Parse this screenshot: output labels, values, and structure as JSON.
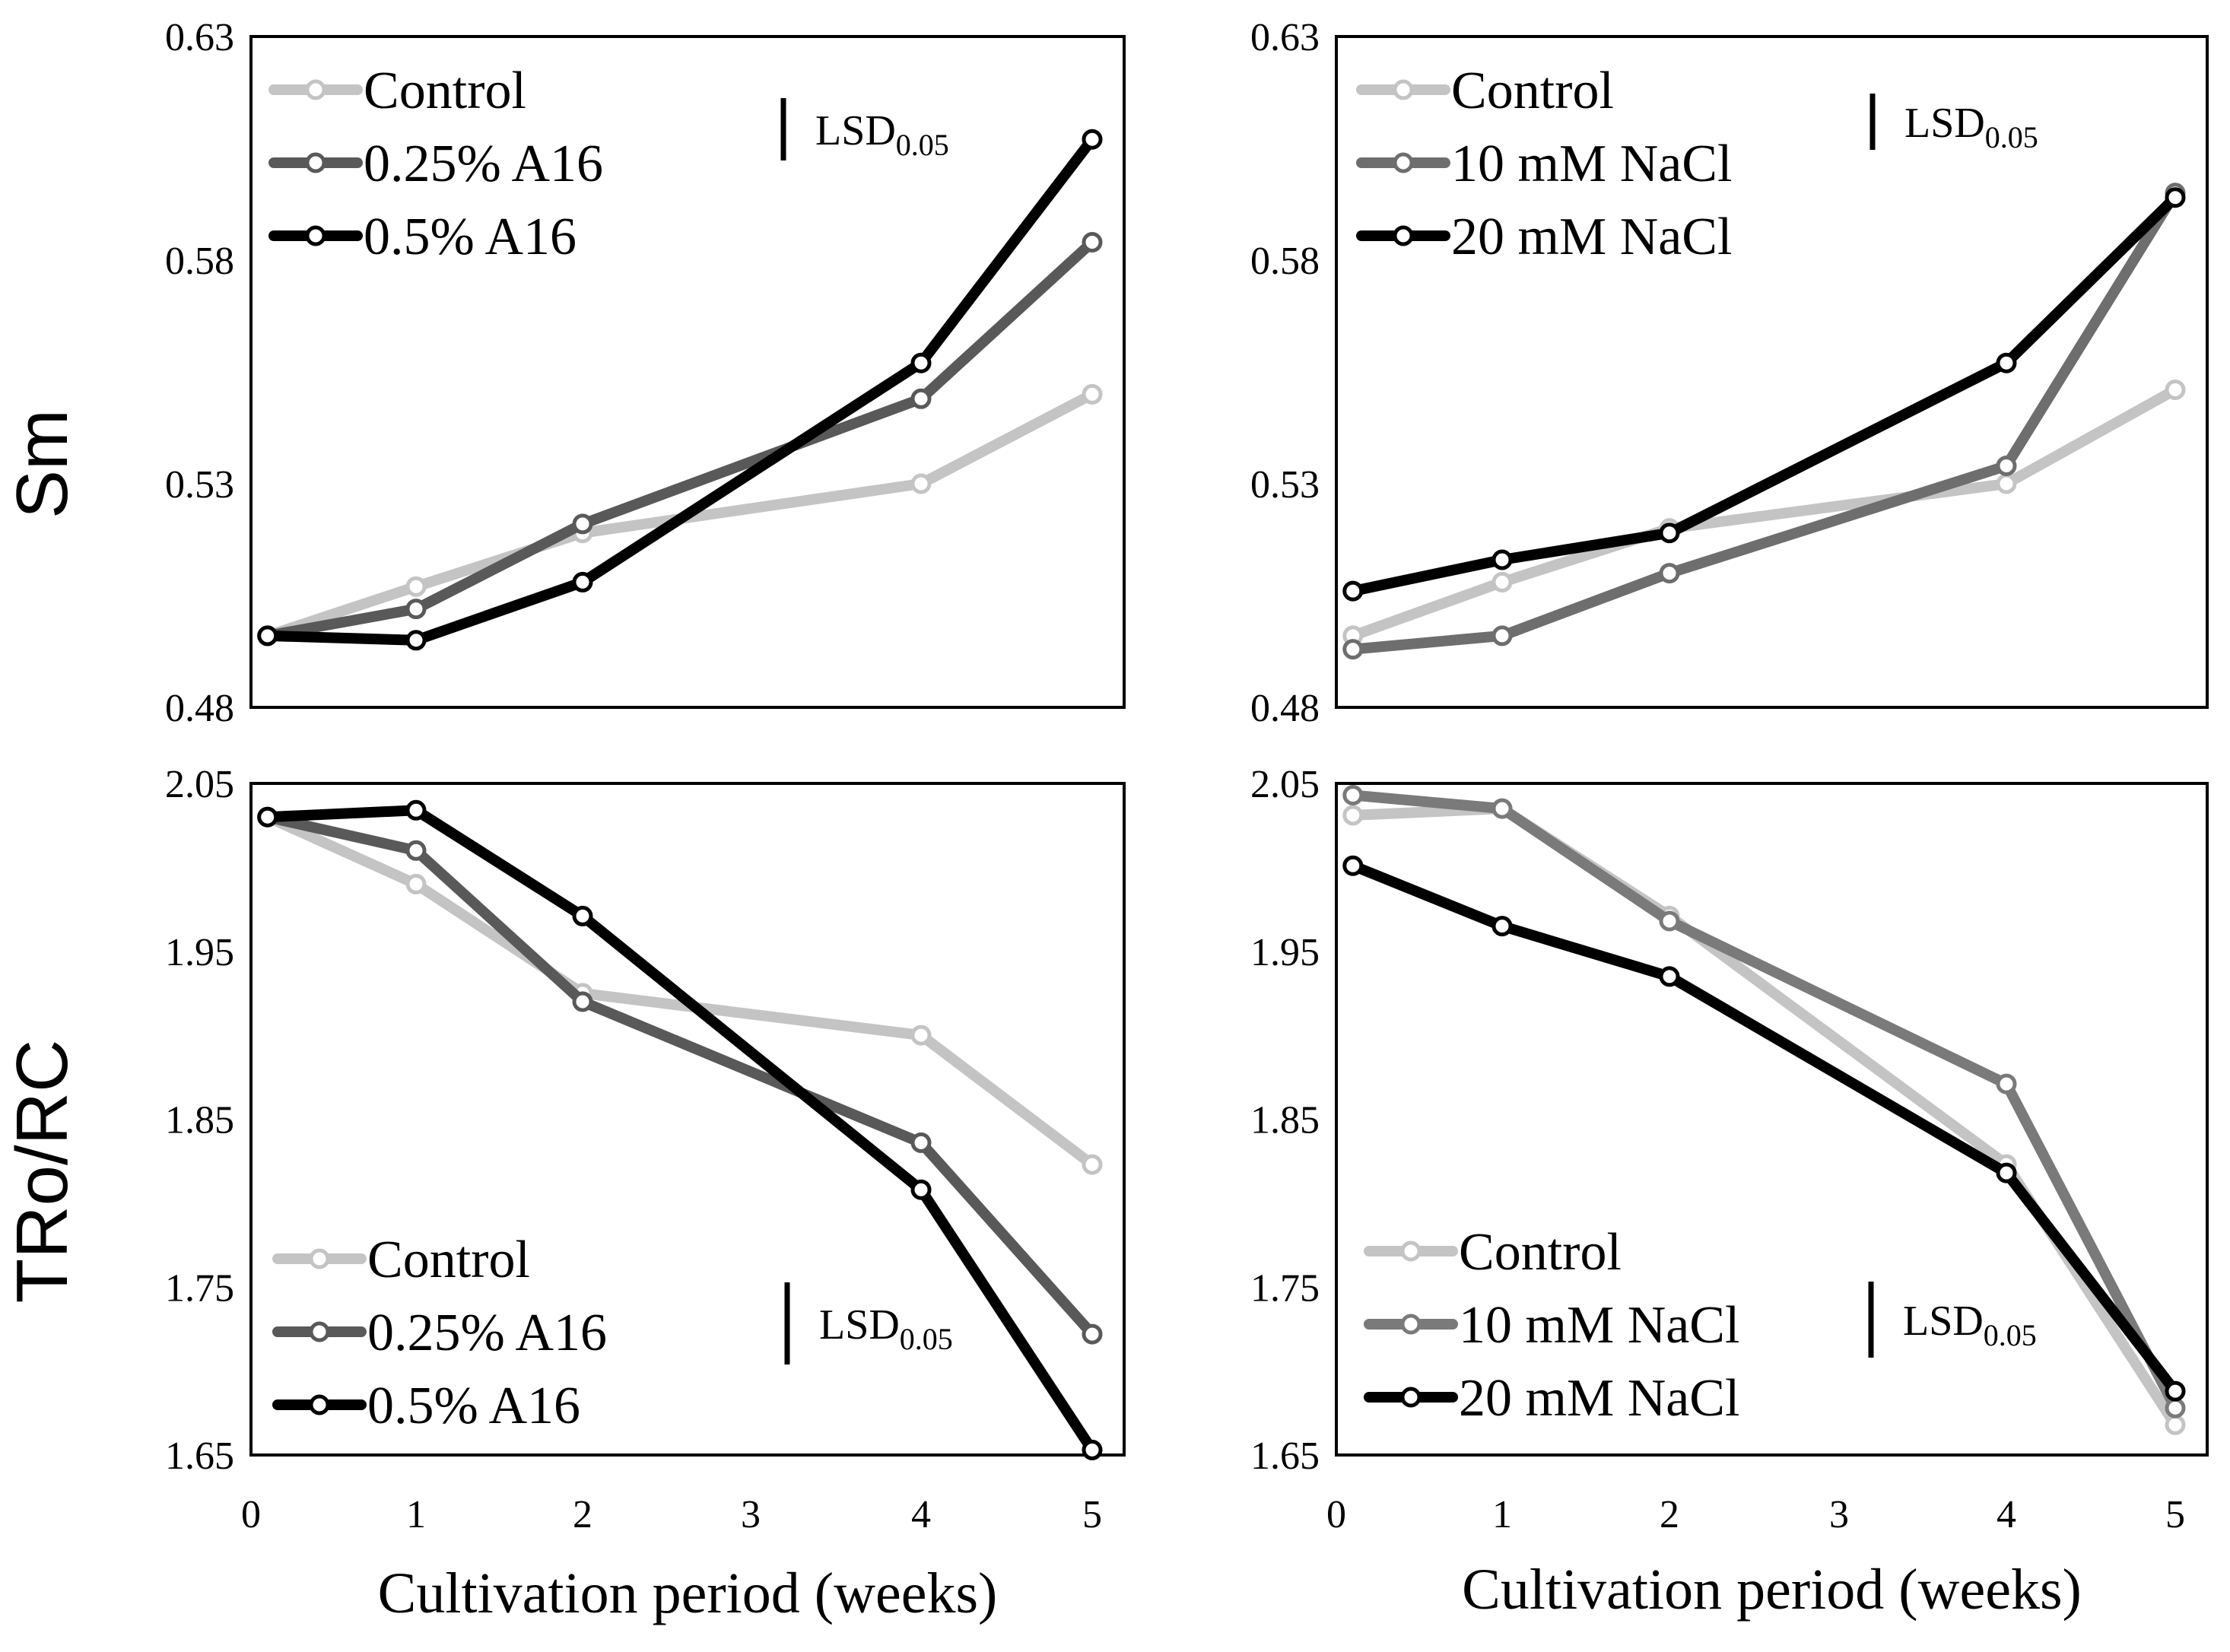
{
  "chart_data": [
    {
      "type": "line",
      "ylabel": "Sm",
      "xlabel": "",
      "x": [
        0.1,
        1,
        2,
        4,
        5
      ],
      "xticks": [
        "0",
        "1",
        "2",
        "3",
        "4",
        "5"
      ],
      "ylim": [
        0.48,
        0.63
      ],
      "yticks": [
        "0.63",
        "0.58",
        "0.53",
        "0.48"
      ],
      "lsd_label": "LSD",
      "lsd_sub": "0.05",
      "legend_position": "top-left",
      "series": [
        {
          "name": "Control",
          "color": "#c4c4c4",
          "values": [
            0.496,
            0.507,
            0.519,
            0.53,
            0.55
          ]
        },
        {
          "name": "0.25% A16",
          "color": "#595959",
          "values": [
            0.496,
            0.502,
            0.521,
            0.549,
            0.584
          ]
        },
        {
          "name": "0.5% A16",
          "color": "#000000",
          "values": [
            0.496,
            0.495,
            0.508,
            0.557,
            0.607
          ]
        }
      ]
    },
    {
      "type": "line",
      "ylabel": "",
      "xlabel": "",
      "x": [
        0.1,
        1,
        2,
        4,
        5
      ],
      "xticks": [
        "0",
        "1",
        "2",
        "3",
        "4",
        "5"
      ],
      "ylim": [
        0.48,
        0.63
      ],
      "yticks": [
        "0.63",
        "0.58",
        "0.53",
        "0.48"
      ],
      "lsd_label": "LSD",
      "lsd_sub": "0.05",
      "legend_position": "top-left",
      "series": [
        {
          "name": "Control",
          "color": "#c4c4c4",
          "values": [
            0.496,
            0.508,
            0.52,
            0.53,
            0.551
          ]
        },
        {
          "name": "10 mM NaCl",
          "color": "#6e6e6e",
          "values": [
            0.493,
            0.496,
            0.51,
            0.534,
            0.595
          ]
        },
        {
          "name": "20 mM NaCl",
          "color": "#000000",
          "values": [
            0.506,
            0.513,
            0.519,
            0.557,
            0.594
          ]
        }
      ]
    },
    {
      "type": "line",
      "ylabel": "TRo/RC",
      "xlabel": "Cultivation period (weeks)",
      "x": [
        0.1,
        1,
        2,
        4,
        5
      ],
      "xticks": [
        "0",
        "1",
        "2",
        "3",
        "4",
        "5"
      ],
      "ylim": [
        1.65,
        2.05
      ],
      "yticks": [
        "2.05",
        "1.95",
        "1.85",
        "1.75",
        "1.65"
      ],
      "lsd_label": "LSD",
      "lsd_sub": "0.05",
      "legend_position": "bottom-left",
      "series": [
        {
          "name": "Control",
          "color": "#c4c4c4",
          "values": [
            2.03,
            1.99,
            1.925,
            1.9,
            1.823
          ]
        },
        {
          "name": "0.25% A16",
          "color": "#595959",
          "values": [
            2.03,
            2.01,
            1.92,
            1.836,
            1.722
          ]
        },
        {
          "name": "0.5% A16",
          "color": "#000000",
          "values": [
            2.03,
            2.034,
            1.971,
            1.808,
            1.653
          ]
        }
      ]
    },
    {
      "type": "line",
      "ylabel": "",
      "xlabel": "Cultivation period (weeks)",
      "x": [
        0.1,
        1,
        2,
        4,
        5
      ],
      "xticks": [
        "0",
        "1",
        "2",
        "3",
        "4",
        "5"
      ],
      "ylim": [
        1.65,
        2.05
      ],
      "yticks": [
        "2.05",
        "1.95",
        "1.85",
        "1.75",
        "1.65"
      ],
      "lsd_label": "LSD",
      "lsd_sub": "0.05",
      "legend_position": "bottom-left",
      "series": [
        {
          "name": "Control",
          "color": "#c4c4c4",
          "values": [
            2.031,
            2.035,
            1.971,
            1.823,
            1.668
          ]
        },
        {
          "name": "10 mM NaCl",
          "color": "#7a7a7a",
          "values": [
            2.043,
            2.035,
            1.968,
            1.871,
            1.678
          ]
        },
        {
          "name": "20 mM NaCl",
          "color": "#000000",
          "values": [
            2.001,
            1.965,
            1.935,
            1.818,
            1.688
          ]
        }
      ]
    }
  ]
}
